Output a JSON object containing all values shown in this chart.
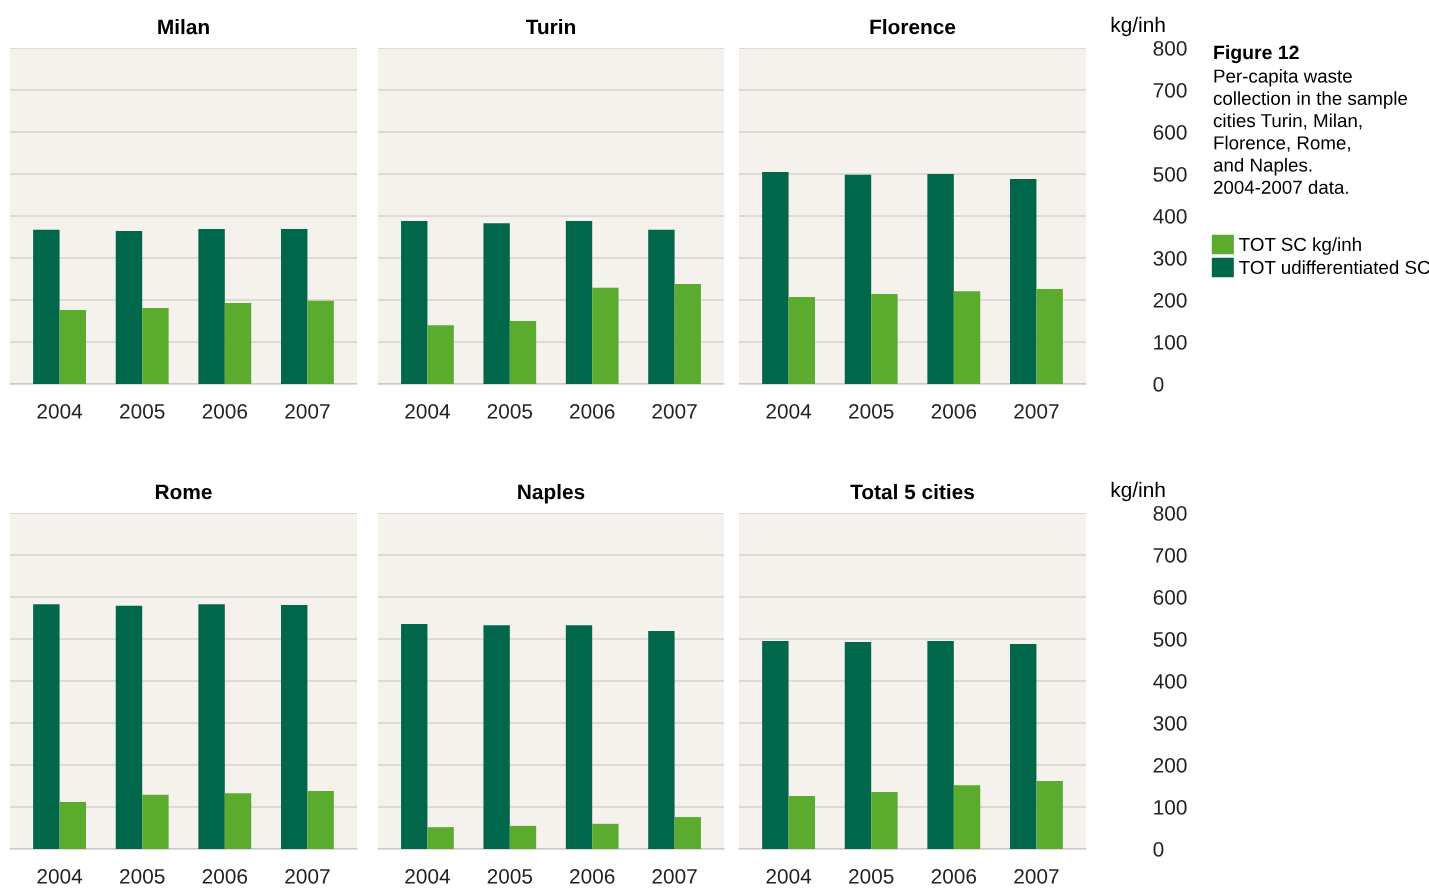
{
  "chart_data": [
    {
      "type": "bar",
      "title": "Milan",
      "categories": [
        "2004",
        "2005",
        "2006",
        "2007"
      ],
      "ylim": [
        0,
        800
      ],
      "yticks": [
        0,
        100,
        200,
        300,
        400,
        500,
        600,
        700,
        800
      ],
      "grid": "y",
      "tick_labels": "x",
      "series": [
        {
          "color": "#00674a",
          "values": [
            367,
            364,
            369,
            369
          ]
        },
        {
          "color": "#5aab2e",
          "values": [
            176,
            181,
            193,
            198
          ]
        }
      ]
    },
    {
      "type": "bar",
      "title": "Turin",
      "categories": [
        "2004",
        "2005",
        "2006",
        "2007"
      ],
      "ylim": [
        0,
        800
      ],
      "yticks": [
        0,
        100,
        200,
        300,
        400,
        500,
        600,
        700,
        800
      ],
      "grid": "y",
      "tick_labels": "x",
      "series": [
        {
          "color": "#00674a",
          "values": [
            388,
            383,
            388,
            367
          ]
        },
        {
          "color": "#5aab2e",
          "values": [
            140,
            150,
            229,
            238
          ]
        }
      ]
    },
    {
      "type": "bar",
      "title": "Florence",
      "categories": [
        "2004",
        "2005",
        "2006",
        "2007"
      ],
      "ylim": [
        0,
        800
      ],
      "yticks": [
        0,
        100,
        200,
        300,
        400,
        500,
        600,
        700,
        800
      ],
      "grid": "y",
      "ylabel": "kg/inh",
      "legend": "right",
      "annotations": [
        "Figure 12",
        "Per-capita waste\ncollection in the sample\ncities Turin, Milan,\nFlorence, Rome,\nand Naples.\n2004-2007 data."
      ],
      "series": [
        {
          "name": "TOT udifferentiated SC",
          "color": "#00674a",
          "values": [
            505,
            498,
            500,
            488
          ]
        },
        {
          "name": "TOT SC kg/inh",
          "color": "#5aab2e",
          "values": [
            207,
            214,
            221,
            226
          ]
        }
      ]
    },
    {
      "type": "bar",
      "title": "Rome",
      "categories": [
        "2004",
        "2005",
        "2006",
        "2007"
      ],
      "ylim": [
        0,
        800
      ],
      "yticks": [
        0,
        100,
        200,
        300,
        400,
        500,
        600,
        700,
        800
      ],
      "grid": "y",
      "tick_labels": "x",
      "series": [
        {
          "color": "#00674a",
          "values": [
            583,
            579,
            583,
            581
          ]
        },
        {
          "color": "#5aab2e",
          "values": [
            112,
            129,
            133,
            138
          ]
        }
      ]
    },
    {
      "type": "bar",
      "title": "Naples",
      "categories": [
        "2004",
        "2005",
        "2006",
        "2007"
      ],
      "ylim": [
        0,
        800
      ],
      "yticks": [
        0,
        100,
        200,
        300,
        400,
        500,
        600,
        700,
        800
      ],
      "grid": "y",
      "tick_labels": "x",
      "series": [
        {
          "color": "#00674a",
          "values": [
            536,
            533,
            533,
            519
          ]
        },
        {
          "color": "#5aab2e",
          "values": [
            52,
            55,
            60,
            76
          ]
        }
      ]
    },
    {
      "type": "bar",
      "title": "Total 5 cities",
      "categories": [
        "2004",
        "2005",
        "2006",
        "2007"
      ],
      "ylim": [
        0,
        800
      ],
      "yticks": [
        0,
        100,
        200,
        300,
        400,
        500,
        600,
        700,
        800
      ],
      "grid": "y",
      "ylabel": "kg/inh",
      "series": [
        {
          "color": "#00674a",
          "values": [
            495,
            493,
            495,
            488
          ]
        },
        {
          "color": "#5aab2e",
          "values": [
            126,
            136,
            152,
            162
          ]
        }
      ]
    }
  ]
}
